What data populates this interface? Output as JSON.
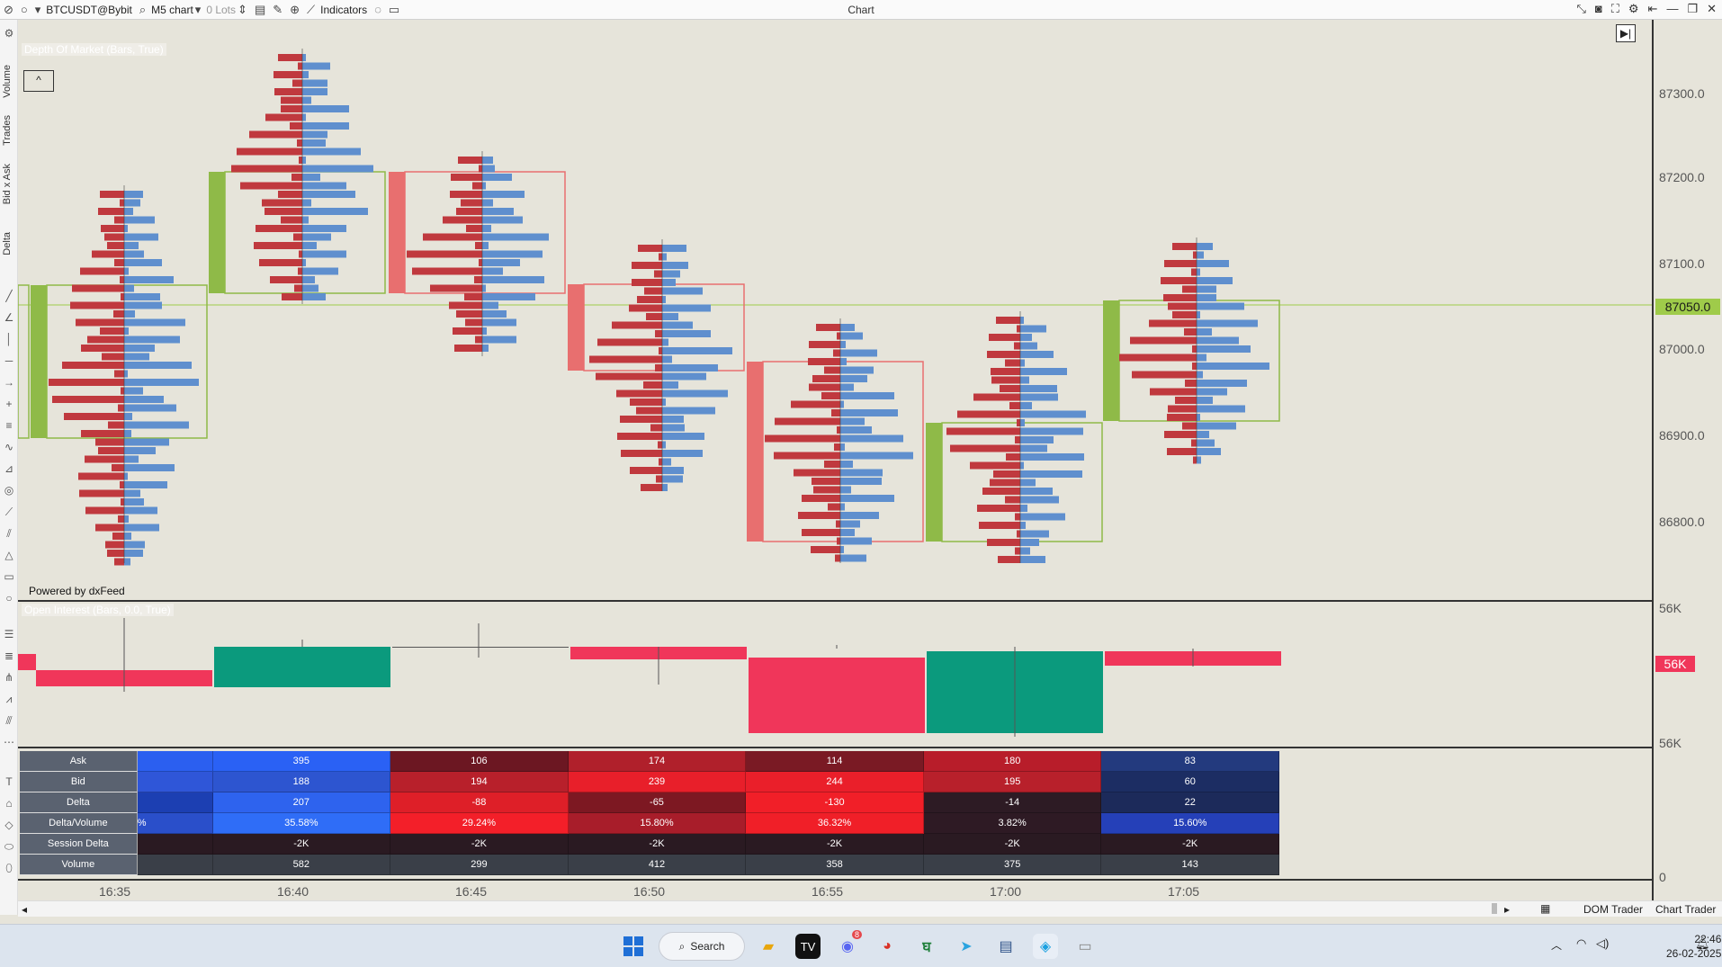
{
  "topbar": {
    "symbol": "BTCUSDT@Bybit",
    "timeframe": "M5 chart",
    "lots": "0 Lots",
    "indicators": "Indicators",
    "window_title": "Chart"
  },
  "left_labels": [
    "Volume",
    "Trades",
    "Bid x Ask",
    "Delta"
  ],
  "chart": {
    "dom_label": "Depth Of Market (Bars, True)",
    "powered": "Powered by dxFeed",
    "oi_label": "Open Interest (Bars, 0.0, True)"
  },
  "price_axis": {
    "labels": [
      "87300.0",
      "87200.0",
      "87100.0",
      "87000.0",
      "86900.0",
      "86800.0"
    ],
    "current": "87050.0",
    "oi_labels": [
      "56K",
      "56K"
    ],
    "oi_current": "56K",
    "stats_zero": "0"
  },
  "stats": {
    "rows": [
      "Ask",
      "Bid",
      "Delta",
      "Delta/Volume",
      "Session Delta",
      "Volume"
    ],
    "columns": [
      {
        "values": [
          "",
          "",
          "",
          "%",
          "",
          ""
        ]
      },
      {
        "values": [
          "395",
          "188",
          "207",
          "35.58%",
          "-2K",
          "582"
        ]
      },
      {
        "values": [
          "106",
          "194",
          "-88",
          "29.24%",
          "-2K",
          "299"
        ]
      },
      {
        "values": [
          "174",
          "239",
          "-65",
          "15.80%",
          "-2K",
          "412"
        ]
      },
      {
        "values": [
          "114",
          "244",
          "-130",
          "36.32%",
          "-2K",
          "358"
        ]
      },
      {
        "values": [
          "180",
          "195",
          "-14",
          "3.82%",
          "-2K",
          "375"
        ]
      },
      {
        "values": [
          "83",
          "60",
          "22",
          "15.60%",
          "-2K",
          "143"
        ]
      }
    ]
  },
  "time_axis": [
    "16:35",
    "16:40",
    "16:45",
    "16:50",
    "16:55",
    "17:00",
    "17:05"
  ],
  "bottom": {
    "dom_trader": "DOM Trader",
    "chart_trader": "Chart Trader"
  },
  "taskbar": {
    "search": "Search",
    "time": "22:46",
    "date": "26-02-2025",
    "discord_badge": "8"
  },
  "colors": {
    "bull": "#8fba48",
    "bear": "#e86f6f",
    "bid": "#c0393e",
    "ask": "#5f8fce",
    "oi_up": "#0b9a7d",
    "oi_down": "#f0365a"
  }
}
